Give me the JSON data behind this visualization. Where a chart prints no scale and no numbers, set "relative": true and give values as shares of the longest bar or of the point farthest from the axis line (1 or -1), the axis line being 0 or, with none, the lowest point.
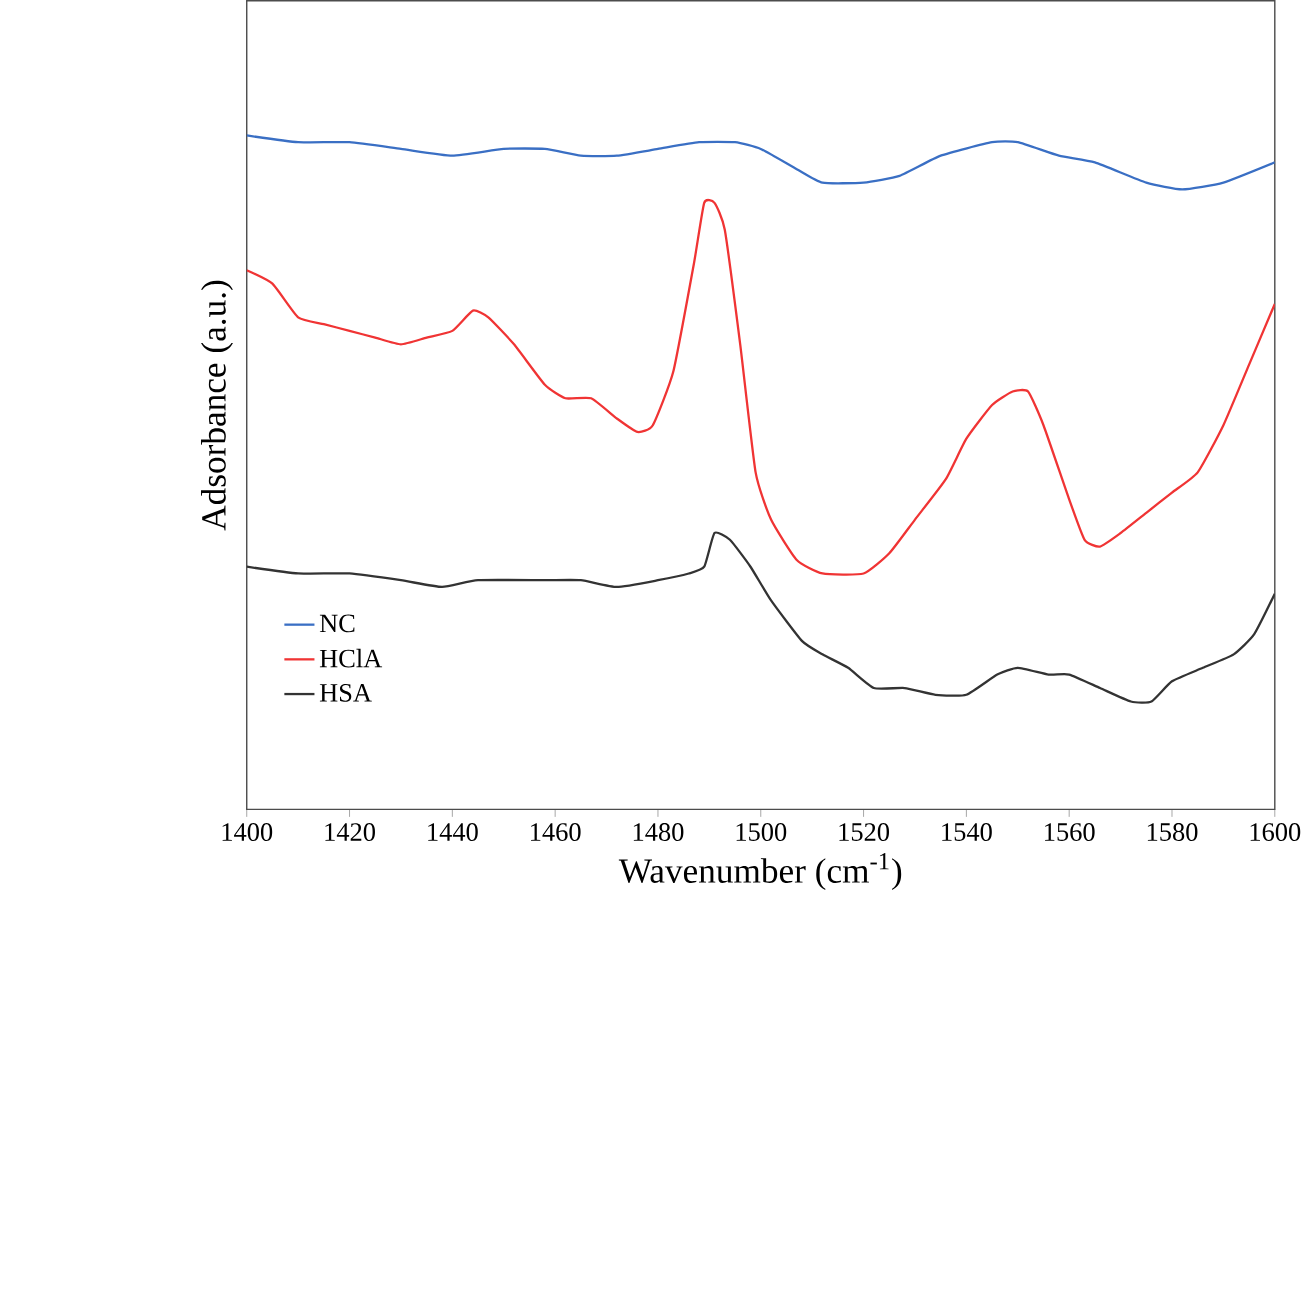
{
  "chart_data": {
    "type": "line",
    "relative": true,
    "xlabel": "Wavenumber (cm$^{-1}$)",
    "ylabel": "Adsorbance (a.u.)",
    "xlim": [
      1400,
      1600
    ],
    "xticks": [
      1400,
      1420,
      1440,
      1460,
      1480,
      1500,
      1520,
      1540,
      1560,
      1580,
      1600
    ],
    "legend": "bottom left",
    "grid": false,
    "marker": "none",
    "line_style": "solid",
    "series": [
      {
        "name": "NC",
        "color": "#3a6fc4",
        "x": [
          1400,
          1410,
          1420,
          1430,
          1440,
          1450,
          1458,
          1465,
          1472,
          1480,
          1488,
          1495,
          1500,
          1507,
          1512,
          1520,
          1527,
          1535,
          1545,
          1550,
          1558,
          1565,
          1575,
          1582,
          1590,
          1600
        ],
        "values": [
          1.0,
          0.99,
          0.99,
          0.98,
          0.97,
          0.98,
          0.98,
          0.97,
          0.97,
          0.98,
          0.99,
          0.99,
          0.98,
          0.95,
          0.93,
          0.93,
          0.94,
          0.97,
          0.99,
          0.99,
          0.97,
          0.96,
          0.93,
          0.92,
          0.93,
          0.96
        ]
      },
      {
        "name": "HClA",
        "color": "#f03434",
        "x": [
          1400,
          1405,
          1410,
          1415,
          1420,
          1425,
          1430,
          1435,
          1440,
          1444,
          1447,
          1452,
          1458,
          1462,
          1467,
          1472,
          1476,
          1479,
          1483,
          1487,
          1489,
          1491,
          1493,
          1496,
          1499,
          1502,
          1507,
          1512,
          1520,
          1525,
          1530,
          1536,
          1540,
          1545,
          1549,
          1552,
          1555,
          1560,
          1563,
          1566,
          1570,
          1575,
          1580,
          1585,
          1590,
          1595,
          1600
        ],
        "values": [
          0.8,
          0.78,
          0.73,
          0.72,
          0.71,
          0.7,
          0.69,
          0.7,
          0.71,
          0.74,
          0.73,
          0.69,
          0.63,
          0.61,
          0.61,
          0.58,
          0.56,
          0.57,
          0.65,
          0.81,
          0.9,
          0.9,
          0.86,
          0.69,
          0.5,
          0.43,
          0.37,
          0.35,
          0.35,
          0.38,
          0.43,
          0.49,
          0.55,
          0.6,
          0.62,
          0.62,
          0.57,
          0.46,
          0.4,
          0.39,
          0.41,
          0.44,
          0.47,
          0.5,
          0.57,
          0.66,
          0.75
        ]
      },
      {
        "name": "HSA",
        "color": "#333333",
        "x": [
          1400,
          1410,
          1420,
          1430,
          1438,
          1445,
          1458,
          1465,
          1472,
          1480,
          1486,
          1489,
          1491,
          1494,
          1498,
          1502,
          1508,
          1512,
          1517,
          1522,
          1528,
          1534,
          1540,
          1546,
          1550,
          1556,
          1560,
          1566,
          1572,
          1576,
          1580,
          1586,
          1592,
          1596,
          1600
        ],
        "values": [
          0.36,
          0.35,
          0.35,
          0.34,
          0.33,
          0.34,
          0.34,
          0.34,
          0.33,
          0.34,
          0.35,
          0.36,
          0.41,
          0.4,
          0.36,
          0.31,
          0.25,
          0.23,
          0.21,
          0.18,
          0.18,
          0.17,
          0.17,
          0.2,
          0.21,
          0.2,
          0.2,
          0.18,
          0.16,
          0.16,
          0.19,
          0.21,
          0.23,
          0.26,
          0.32
        ]
      }
    ]
  }
}
